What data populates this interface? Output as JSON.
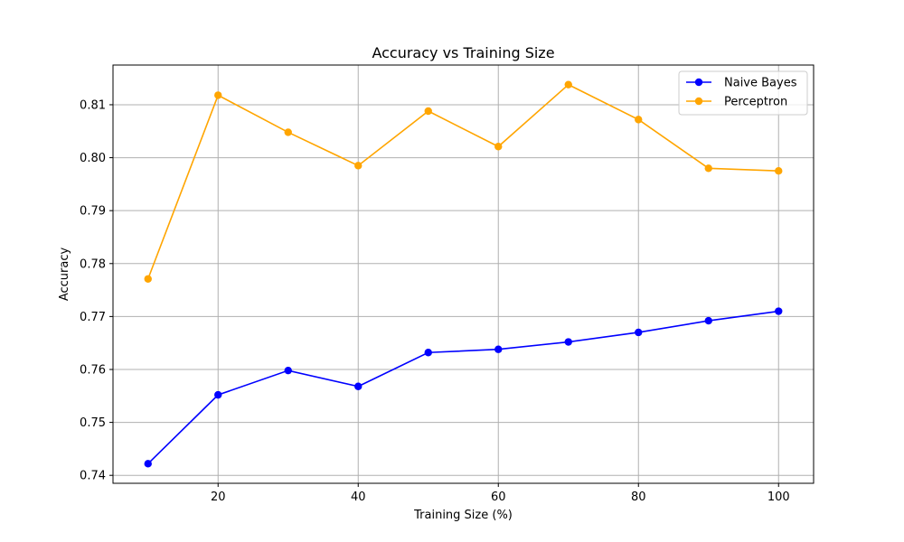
{
  "chart_data": {
    "type": "line",
    "title": "Accuracy vs Training Size",
    "xlabel": "Training Size (%)",
    "ylabel": "Accuracy",
    "x": [
      10,
      20,
      30,
      40,
      50,
      60,
      70,
      80,
      90,
      100
    ],
    "xlim": [
      5,
      105
    ],
    "ylim": [
      0.7385,
      0.8175
    ],
    "xticks": [
      20,
      40,
      60,
      80,
      100
    ],
    "xtick_labels": [
      "20",
      "40",
      "60",
      "80",
      "100"
    ],
    "yticks": [
      0.74,
      0.75,
      0.76,
      0.77,
      0.78,
      0.79,
      0.8,
      0.81
    ],
    "ytick_labels": [
      "0.74",
      "0.75",
      "0.76",
      "0.77",
      "0.78",
      "0.79",
      "0.80",
      "0.81"
    ],
    "grid": true,
    "legend_position": "top-right",
    "series": [
      {
        "name": "Naive Bayes",
        "color": "#0000ff",
        "marker": "circle",
        "values": [
          0.7422,
          0.7552,
          0.7598,
          0.7568,
          0.7632,
          0.7638,
          0.7652,
          0.767,
          0.7692,
          0.771
        ]
      },
      {
        "name": "Perceptron",
        "color": "#ffa500",
        "marker": "circle",
        "values": [
          0.7771,
          0.8118,
          0.8048,
          0.7985,
          0.8088,
          0.8021,
          0.8138,
          0.8072,
          0.798,
          0.7975
        ]
      }
    ]
  }
}
